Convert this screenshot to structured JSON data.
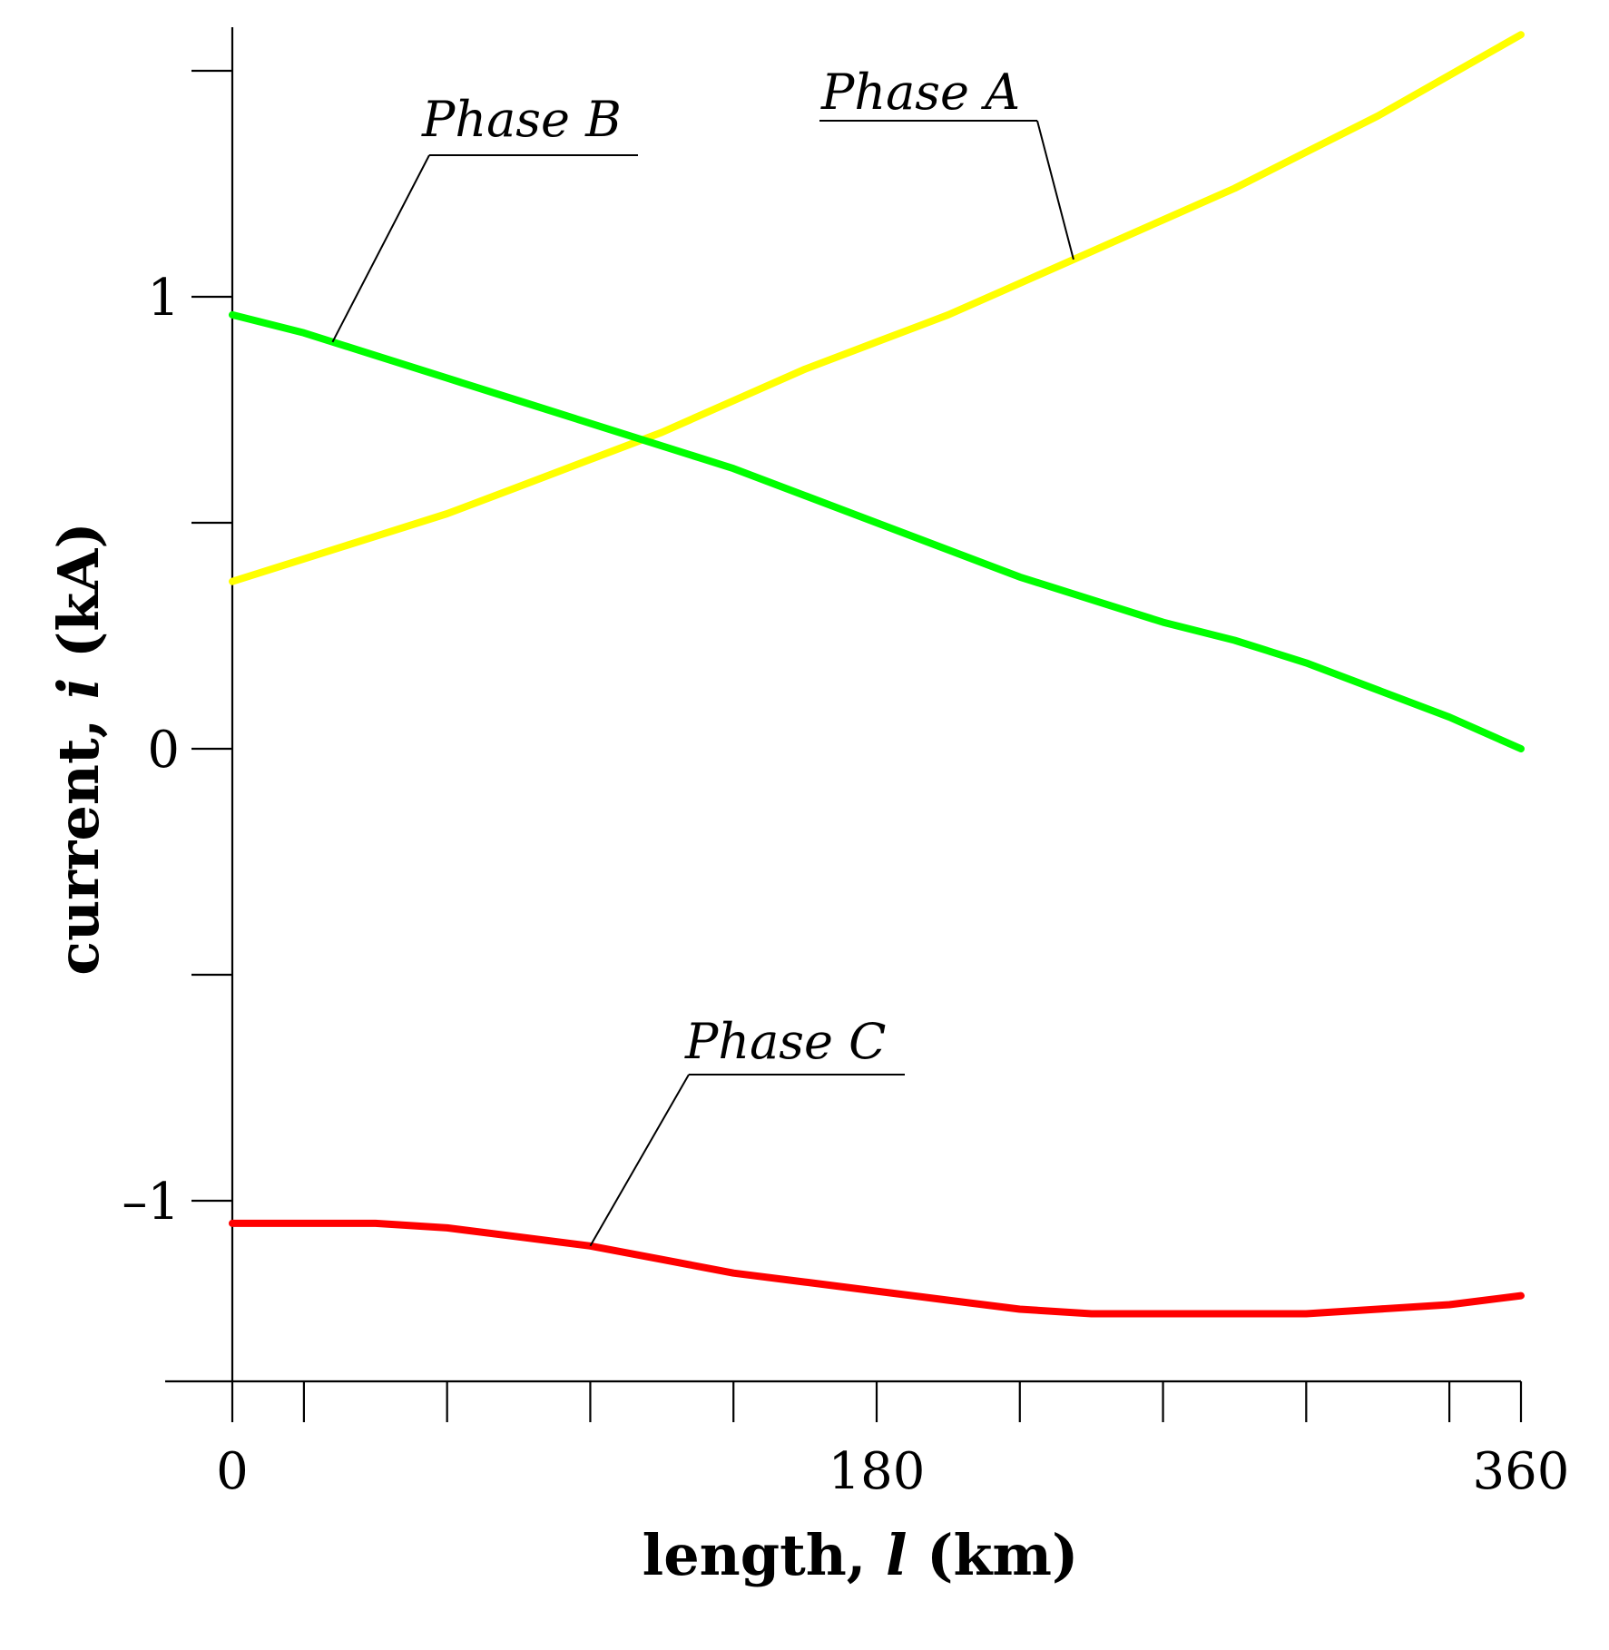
{
  "chart_data": {
    "type": "line",
    "title": "",
    "xlabel": {
      "prefix": "length, ",
      "var": "l",
      "suffix": " (km)"
    },
    "ylabel": {
      "prefix": "current, ",
      "var": "i",
      "suffix": " (kA)"
    },
    "xlim": [
      0,
      360
    ],
    "ylim": [
      -1.35,
      1.6
    ],
    "x_ticks": [
      0,
      20,
      60,
      100,
      140,
      180,
      220,
      260,
      300,
      340,
      360
    ],
    "x_tick_labels": [
      {
        "value": 0,
        "label": "0"
      },
      {
        "value": 180,
        "label": "180"
      },
      {
        "value": 360,
        "label": "360"
      }
    ],
    "y_ticks": [
      -1,
      -0.5,
      0,
      0.5,
      1,
      1.5
    ],
    "y_tick_labels": [
      {
        "value": 1,
        "label": "1"
      },
      {
        "value": 0,
        "label": "0"
      },
      {
        "value": -1,
        "label": "–1"
      }
    ],
    "grid": false,
    "series": [
      {
        "name": "Phase A",
        "color": "#ffff00",
        "points": [
          [
            0,
            0.37
          ],
          [
            20,
            0.42
          ],
          [
            40,
            0.47
          ],
          [
            60,
            0.52
          ],
          [
            80,
            0.58
          ],
          [
            100,
            0.64
          ],
          [
            120,
            0.7
          ],
          [
            140,
            0.77
          ],
          [
            160,
            0.84
          ],
          [
            180,
            0.9
          ],
          [
            200,
            0.96
          ],
          [
            220,
            1.03
          ],
          [
            240,
            1.1
          ],
          [
            260,
            1.17
          ],
          [
            280,
            1.24
          ],
          [
            300,
            1.32
          ],
          [
            320,
            1.4
          ],
          [
            340,
            1.49
          ],
          [
            360,
            1.58
          ]
        ]
      },
      {
        "name": "Phase B",
        "color": "#00ff00",
        "points": [
          [
            0,
            0.96
          ],
          [
            20,
            0.92
          ],
          [
            40,
            0.87
          ],
          [
            60,
            0.82
          ],
          [
            80,
            0.77
          ],
          [
            100,
            0.72
          ],
          [
            120,
            0.67
          ],
          [
            140,
            0.62
          ],
          [
            160,
            0.56
          ],
          [
            180,
            0.5
          ],
          [
            200,
            0.44
          ],
          [
            220,
            0.38
          ],
          [
            240,
            0.33
          ],
          [
            260,
            0.28
          ],
          [
            280,
            0.24
          ],
          [
            300,
            0.19
          ],
          [
            320,
            0.13
          ],
          [
            340,
            0.07
          ],
          [
            360,
            0.0
          ]
        ]
      },
      {
        "name": "Phase C",
        "color": "#ff0000",
        "points": [
          [
            0,
            -1.05
          ],
          [
            20,
            -1.05
          ],
          [
            40,
            -1.05
          ],
          [
            60,
            -1.06
          ],
          [
            80,
            -1.08
          ],
          [
            100,
            -1.1
          ],
          [
            120,
            -1.13
          ],
          [
            140,
            -1.16
          ],
          [
            160,
            -1.18
          ],
          [
            180,
            -1.2
          ],
          [
            200,
            -1.22
          ],
          [
            220,
            -1.24
          ],
          [
            240,
            -1.25
          ],
          [
            260,
            -1.25
          ],
          [
            280,
            -1.25
          ],
          [
            300,
            -1.25
          ],
          [
            320,
            -1.24
          ],
          [
            340,
            -1.23
          ],
          [
            360,
            -1.21
          ]
        ]
      }
    ],
    "annotations": [
      {
        "series": "Phase A",
        "text": "Phase A",
        "at_x": 235
      },
      {
        "series": "Phase B",
        "text": "Phase B",
        "at_x": 28
      },
      {
        "series": "Phase C",
        "text": "Phase C",
        "at_x": 100
      }
    ]
  }
}
